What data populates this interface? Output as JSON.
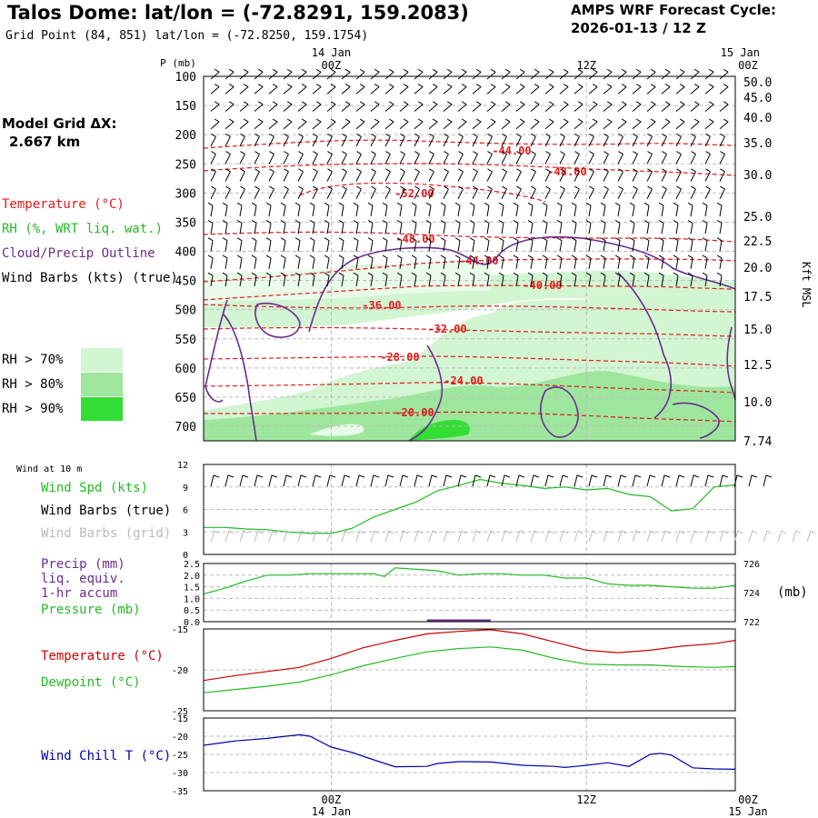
{
  "header": {
    "title": "Talos Dome:  lat/lon = (-72.8291, 159.2083)",
    "subtitle": "Grid Point (84, 851) lat/lon = (-72.8250, 159.1754)",
    "cycle_line1": "AMPS WRF Forecast Cycle:",
    "cycle_line2": "2026-01-13 / 12  Z"
  },
  "grid": {
    "line1": "Model Grid ΔX:",
    "line2": "2.667 km"
  },
  "legend": {
    "temperature": "Temperature (°C)",
    "rh": "RH (%, WRT liq. wat.)",
    "cloud": "Cloud/Precip Outline",
    "wind": "Wind Barbs (kts) (true)",
    "rh70": "RH > 70%",
    "rh80": "RH > 80%",
    "rh90": "RH > 90%",
    "rh_colors": [
      "#d2f5d2",
      "#9ee69e",
      "#33dd33"
    ]
  },
  "top_axis": {
    "p_label": "P (mb)",
    "ticks": [
      {
        "time": "00Z",
        "date": "14 Jan"
      },
      {
        "time": "12Z",
        "date": ""
      },
      {
        "time": "00Z",
        "date": "15 Jan"
      }
    ],
    "kft_label": "Kft MSL"
  },
  "bottom_axis": {
    "ticks": [
      {
        "time": "00Z",
        "date": "14 Jan"
      },
      {
        "time": "12Z",
        "date": ""
      },
      {
        "time": "00Z",
        "date": "15 Jan"
      }
    ]
  },
  "wind10_label": "Wind at 10 m",
  "panel_legends": {
    "wind_spd": "Wind Spd (kts)",
    "wind_barbs_true": "Wind Barbs (true)",
    "wind_barbs_grid": "Wind Barbs (grid)",
    "precip1": "Precip (mm)",
    "precip2": "liq. equiv.",
    "precip3": "1-hr accum",
    "pressure": "Pressure (mb)",
    "pressure_unit": "(mb)",
    "temperature": "Temperature (°C)",
    "dewpoint": "Dewpoint (°C)",
    "windchill": "Wind Chill T (°C)"
  },
  "chart_data": [
    {
      "type": "heatmap",
      "name": "sounding cross-section",
      "pressure_ticks": [
        100,
        150,
        200,
        250,
        300,
        350,
        400,
        450,
        500,
        550,
        600,
        650,
        700
      ],
      "altitude_ticks_kft": [
        "50.0",
        "45.0",
        "40.0",
        "35.0",
        "30.0",
        "25.0",
        "22.5",
        "20.0",
        "17.5",
        "15.0",
        "12.5",
        "10.0",
        "7.74"
      ],
      "temperature_contour_labels": [
        "-44.00",
        "-48.00",
        "-52.00",
        "-48.00",
        "-44.00",
        "-40.00",
        "-36.00",
        "-32.00",
        "-28.00",
        "-24.00",
        "-20.00"
      ],
      "colors": {
        "temperature": "#e41a1c",
        "cloud": "#6a2c91"
      }
    },
    {
      "type": "line",
      "name": "10 m wind speed",
      "ylim": [
        0,
        12
      ],
      "y_ticks": [
        "12",
        "9",
        "6",
        "3",
        "0"
      ],
      "x_hours": [
        0,
        2,
        4,
        6,
        8,
        10,
        12,
        14,
        16,
        18,
        20,
        22,
        24,
        26,
        28,
        30,
        32,
        34,
        36,
        38,
        40,
        42,
        44,
        46,
        48,
        50
      ],
      "values": [
        3.6,
        3.6,
        3.4,
        3.3,
        3.0,
        2.8,
        2.8,
        3.5,
        5.0,
        6.0,
        7.0,
        8.5,
        9.2,
        10.0,
        9.5,
        9.2,
        8.8,
        9.0,
        8.6,
        8.8,
        8.0,
        7.7,
        5.8,
        6.1,
        9.0,
        9.3
      ],
      "colors": {
        "line": "#22bb22"
      }
    },
    {
      "type": "line",
      "name": "precip and pressure",
      "precip_ticks": [
        "2.5",
        "2.0",
        "1.5",
        "1.0",
        "0.5",
        "0.0"
      ],
      "precip_ylim": [
        0,
        2.5
      ],
      "pressure_ticks": [
        "726",
        "724",
        "722"
      ],
      "pressure_ylim": [
        722,
        726
      ],
      "x_hours": [
        0,
        2,
        4,
        6,
        8,
        10,
        12,
        14,
        16,
        17,
        18,
        20,
        22,
        24,
        26,
        28,
        30,
        32,
        34,
        36,
        38,
        40,
        42,
        44,
        46,
        48,
        50
      ],
      "pressure": [
        723.9,
        724.3,
        724.8,
        725.2,
        725.2,
        725.3,
        725.3,
        725.3,
        725.3,
        725.1,
        725.7,
        725.6,
        725.5,
        725.2,
        725.3,
        725.3,
        725.2,
        725.2,
        725.0,
        725.0,
        724.6,
        724.5,
        724.5,
        724.4,
        724.3,
        724.3,
        724.5
      ],
      "precip_x_hours": [
        21,
        27
      ],
      "precip": [
        0.05,
        0.05
      ],
      "colors": {
        "pressure": "#22bb22",
        "precip": "#6a2c91"
      }
    },
    {
      "type": "line",
      "name": "temperature and dewpoint",
      "ylim": [
        -25,
        -15
      ],
      "y_ticks": [
        "-15",
        "-20",
        "-25"
      ],
      "x_hours": [
        0,
        3,
        6,
        9,
        12,
        15,
        18,
        21,
        24,
        27,
        30,
        33,
        36,
        39,
        42,
        45,
        48,
        50
      ],
      "temperature": [
        -21.3,
        -20.7,
        -20.2,
        -19.7,
        -18.6,
        -17.3,
        -16.4,
        -15.6,
        -15.3,
        -15.1,
        -15.6,
        -16.6,
        -17.6,
        -17.9,
        -17.6,
        -17.1,
        -16.8,
        -16.4
      ],
      "dewpoint": [
        -22.8,
        -22.4,
        -22.0,
        -21.5,
        -20.6,
        -19.5,
        -18.6,
        -17.8,
        -17.4,
        -17.2,
        -17.6,
        -18.6,
        -19.3,
        -19.4,
        -19.4,
        -19.6,
        -19.7,
        -19.6
      ],
      "colors": {
        "temperature": "#cc0000",
        "dewpoint": "#22bb22"
      }
    },
    {
      "type": "line",
      "name": "wind chill",
      "ylim": [
        -35,
        -15
      ],
      "y_ticks": [
        "-15",
        "-20",
        "-25",
        "-30",
        "-35"
      ],
      "x_hours": [
        0,
        3,
        6,
        9,
        10,
        12,
        14,
        16,
        18,
        21,
        22,
        24,
        27,
        30,
        33,
        34,
        36,
        38,
        40,
        42,
        43,
        44,
        46,
        48,
        50
      ],
      "values": [
        -22.5,
        -21.3,
        -20.6,
        -19.6,
        -20.0,
        -23.0,
        -24.5,
        -26.5,
        -28.4,
        -28.3,
        -27.5,
        -27.0,
        -27.1,
        -28.0,
        -28.3,
        -28.6,
        -28.0,
        -27.3,
        -28.3,
        -25.0,
        -24.7,
        -25.2,
        -28.7,
        -29.0,
        -29.1
      ],
      "colors": {
        "line": "#0000aa"
      }
    }
  ]
}
